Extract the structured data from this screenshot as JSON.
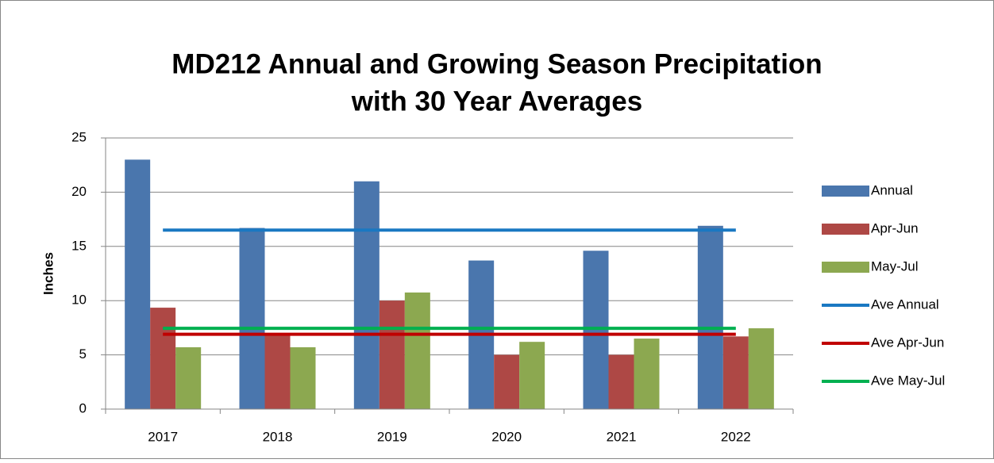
{
  "chart_data": {
    "type": "bar",
    "title": [
      "MD212 Annual and Growing Season Precipitation",
      "with 30 Year Averages"
    ],
    "y_label": "Inches",
    "categories": [
      "2017",
      "2018",
      "2019",
      "2020",
      "2021",
      "2022"
    ],
    "series": [
      {
        "name": "Annual",
        "color": "#4a76ad",
        "values": [
          23.0,
          16.7,
          21.0,
          13.7,
          14.6,
          16.9
        ]
      },
      {
        "name": "Apr-Jun",
        "color": "#ae4845",
        "values": [
          9.35,
          7.0,
          10.0,
          5.0,
          5.0,
          6.7
        ]
      },
      {
        "name": "May-Jul",
        "color": "#8ca850",
        "values": [
          5.7,
          5.7,
          10.75,
          6.2,
          6.5,
          7.45
        ]
      },
      {
        "name": "Ave Annual",
        "type": "line",
        "color": "#1a78c2",
        "values": [
          16.5,
          16.5,
          16.5,
          16.5,
          16.5,
          16.5
        ]
      },
      {
        "name": "Ave Apr-Jun",
        "type": "line",
        "color": "#c00000",
        "values": [
          6.9,
          6.9,
          6.9,
          6.9,
          6.9,
          6.9
        ]
      },
      {
        "name": "Ave May-Jul",
        "type": "line",
        "color": "#00b050",
        "values": [
          7.45,
          7.45,
          7.45,
          7.45,
          7.45,
          7.45
        ]
      }
    ],
    "ylim": [
      0,
      25
    ],
    "yticks": [
      0,
      5,
      10,
      15,
      20,
      25
    ],
    "grid": true,
    "legend": "right"
  }
}
